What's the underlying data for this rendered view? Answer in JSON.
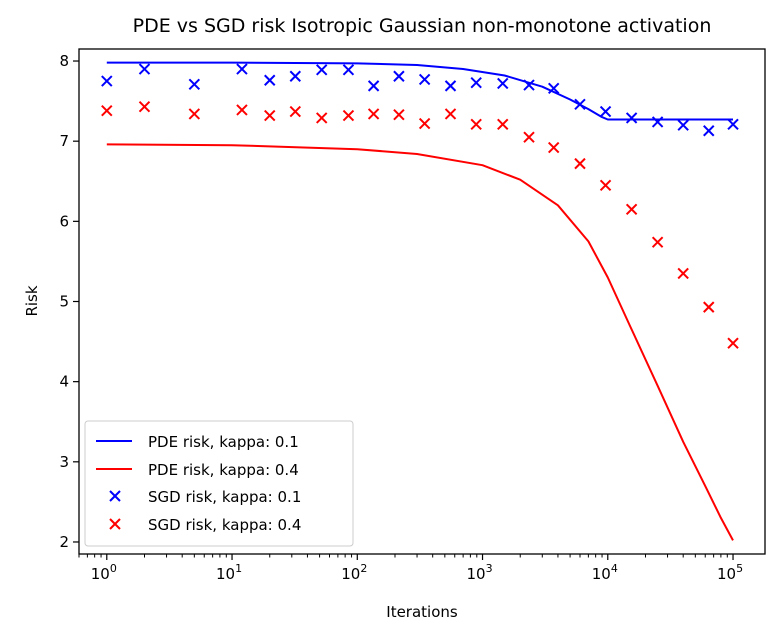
{
  "chart_data": {
    "type": "line",
    "title": "PDE vs SGD risk Isotropic Gaussian non-monotone activation",
    "xlabel": "Iterations",
    "ylabel": "Risk",
    "xscale": "log",
    "xlim": [
      0.6,
      180000
    ],
    "ylim": [
      1.85,
      8.15
    ],
    "yticks": [
      2,
      3,
      4,
      5,
      6,
      7,
      8
    ],
    "xticks": [
      {
        "value": 1,
        "base": "10",
        "exp": "0"
      },
      {
        "value": 10,
        "base": "10",
        "exp": "1"
      },
      {
        "value": 100,
        "base": "10",
        "exp": "2"
      },
      {
        "value": 1000,
        "base": "10",
        "exp": "3"
      },
      {
        "value": 10000,
        "base": "10",
        "exp": "4"
      },
      {
        "value": 100000,
        "base": "10",
        "exp": "5"
      }
    ],
    "grid": false,
    "legend_position": "lower-left",
    "series": [
      {
        "name": "PDE risk, kappa: 0.1",
        "kind": "line",
        "color": "#0000ff",
        "x": [
          1,
          10,
          100,
          300,
          700,
          1500,
          3000,
          5000,
          7000,
          9000,
          10000,
          12000,
          20000,
          50000,
          100000
        ],
        "y": [
          7.98,
          7.98,
          7.97,
          7.95,
          7.9,
          7.82,
          7.68,
          7.52,
          7.4,
          7.3,
          7.27,
          7.27,
          7.27,
          7.27,
          7.27
        ]
      },
      {
        "name": "PDE risk, kappa: 0.4",
        "kind": "line",
        "color": "#ff0000",
        "x": [
          1,
          10,
          100,
          300,
          1000,
          2000,
          4000,
          7000,
          10000,
          15000,
          25000,
          40000,
          60000,
          80000,
          100000
        ],
        "y": [
          6.96,
          6.95,
          6.9,
          6.84,
          6.7,
          6.52,
          6.2,
          5.75,
          5.3,
          4.7,
          3.95,
          3.25,
          2.7,
          2.3,
          2.02
        ]
      },
      {
        "name": "SGD risk, kappa: 0.1",
        "kind": "scatter",
        "color": "#0000ff",
        "x": [
          1,
          2,
          5,
          12,
          20,
          32,
          52,
          85,
          135,
          215,
          345,
          555,
          890,
          1450,
          2350,
          3700,
          6000,
          9600,
          15500,
          25000,
          40000,
          64000,
          100000
        ],
        "y": [
          7.75,
          7.9,
          7.71,
          7.9,
          7.76,
          7.81,
          7.89,
          7.89,
          7.69,
          7.81,
          7.77,
          7.69,
          7.73,
          7.72,
          7.7,
          7.66,
          7.46,
          7.37,
          7.29,
          7.24,
          7.2,
          7.13,
          7.21
        ]
      },
      {
        "name": "SGD risk, kappa: 0.4",
        "kind": "scatter",
        "color": "#ff0000",
        "x": [
          1,
          2,
          5,
          12,
          20,
          32,
          52,
          85,
          135,
          215,
          345,
          555,
          890,
          1450,
          2350,
          3700,
          6000,
          9600,
          15500,
          25000,
          40000,
          64000,
          100000
        ],
        "y": [
          7.38,
          7.43,
          7.34,
          7.39,
          7.32,
          7.37,
          7.29,
          7.32,
          7.34,
          7.33,
          7.22,
          7.34,
          7.21,
          7.21,
          7.05,
          6.92,
          6.72,
          6.45,
          6.15,
          5.74,
          5.35,
          4.93,
          4.48
        ]
      }
    ]
  }
}
